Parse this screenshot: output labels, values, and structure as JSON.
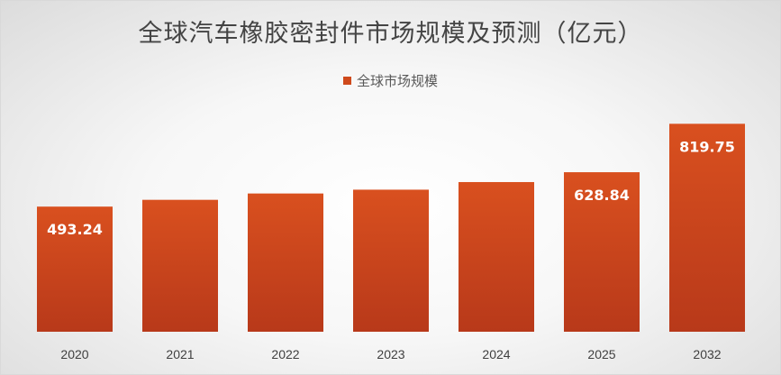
{
  "chart_data": {
    "type": "bar",
    "title": "全球汽车橡胶密封件市场规模及预测（亿元）",
    "legend": {
      "position": "top",
      "entries": [
        "全球市场规模"
      ]
    },
    "categories": [
      "2020",
      "2021",
      "2022",
      "2023",
      "2024",
      "2025",
      "2032"
    ],
    "series": [
      {
        "name": "全球市场规模",
        "values": [
          493.24,
          520,
          545,
          560,
          590,
          628.84,
          819.75
        ],
        "color": "#cf4a1c"
      }
    ],
    "data_labels": [
      "493.24",
      "",
      "",
      "",
      "",
      "628.84",
      "819.75"
    ],
    "ylim": [
      0,
      860
    ],
    "grid": false
  }
}
